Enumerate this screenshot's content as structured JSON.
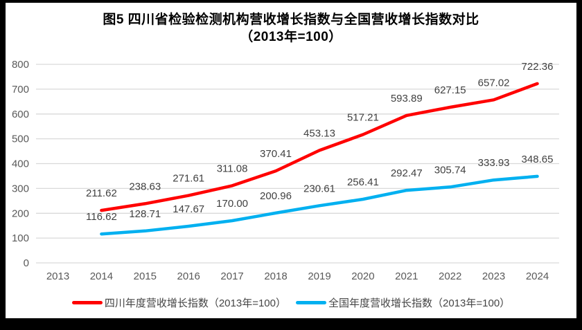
{
  "figure": {
    "title_line1": "图5  四川省检验检测机构营收增长指数与全国营收增长指数对比",
    "title_line2": "（2013年=100）"
  },
  "chart_data": {
    "type": "line",
    "categories": [
      "2013",
      "2014",
      "2015",
      "2016",
      "2017",
      "2018",
      "2019",
      "2020",
      "2021",
      "2022",
      "2023",
      "2024"
    ],
    "series": [
      {
        "name": "四川年度营收增长指数（2013年=100）",
        "color": "#FF0000",
        "values": [
          null,
          211.62,
          238.63,
          271.61,
          311.08,
          370.41,
          453.13,
          517.21,
          593.89,
          627.15,
          657.02,
          722.36
        ]
      },
      {
        "name": "全国年度营收增长指数（2013年=100）",
        "color": "#00B0F0",
        "values": [
          null,
          116.62,
          128.71,
          147.67,
          170.0,
          200.96,
          230.61,
          256.41,
          292.47,
          305.74,
          333.93,
          348.65
        ]
      }
    ],
    "title": "图5  四川省检验检测机构营收增长指数与全国营收增长指数对比（2013年=100）",
    "xlabel": "",
    "ylabel": "",
    "ylim": [
      0,
      800
    ],
    "ytick_step": 100,
    "yticks": [
      "0",
      "100",
      "200",
      "300",
      "400",
      "500",
      "600",
      "700",
      "800"
    ],
    "grid": true,
    "legend_position": "bottom",
    "data_labels_decimals": 2
  },
  "colors": {
    "gridline": "#D9D9D9",
    "axis_tick_text": "#595959",
    "data_label_text": "#404040",
    "legend_text": "#444444",
    "frame": "#000000",
    "background": "#FFFFFF"
  }
}
